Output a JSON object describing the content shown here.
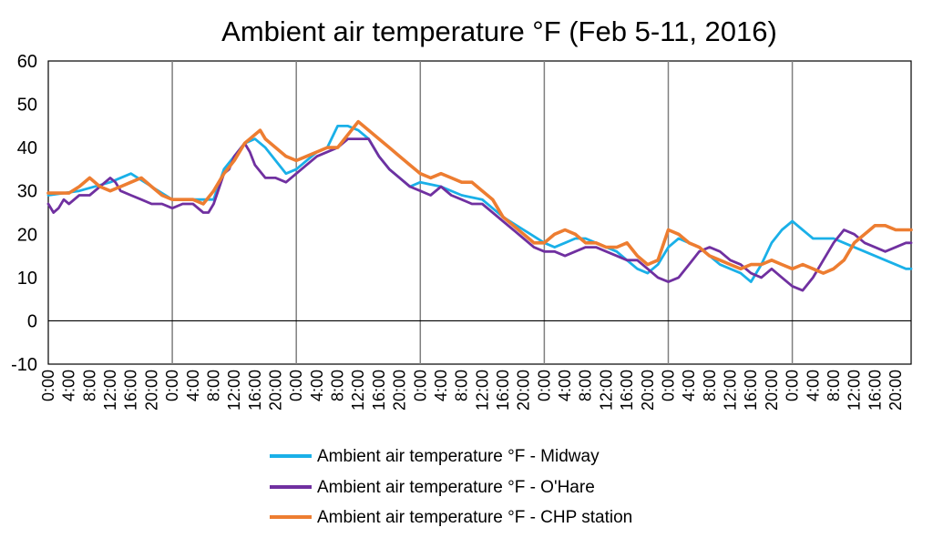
{
  "chart_data": {
    "type": "line",
    "title": "Ambient air temperature °F (Feb 5-11, 2016)",
    "xlabel": "",
    "ylabel": "",
    "ylim": [
      -10,
      60
    ],
    "yticks": [
      -10,
      0,
      10,
      20,
      30,
      40,
      50,
      60
    ],
    "x_tick_labels": [
      "0:00",
      "4:00",
      "8:00",
      "12:00",
      "16:00",
      "20:00",
      "0:00",
      "4:00",
      "8:00",
      "12:00",
      "16:00",
      "20:00",
      "0:00",
      "4:00",
      "8:00",
      "12:00",
      "16:00",
      "20:00",
      "0:00",
      "4:00",
      "8:00",
      "12:00",
      "16:00",
      "20:00",
      "0:00",
      "4:00",
      "8:00",
      "12:00",
      "16:00",
      "20:00",
      "0:00",
      "4:00",
      "8:00",
      "12:00",
      "16:00",
      "20:00",
      "0:00",
      "4:00",
      "8:00",
      "12:00",
      "16:00",
      "20:00"
    ],
    "x_hours": [
      0,
      4,
      8,
      12,
      16,
      20,
      24,
      28,
      32,
      36,
      40,
      44,
      48,
      52,
      56,
      60,
      64,
      68,
      72,
      76,
      80,
      84,
      88,
      92,
      96,
      100,
      104,
      108,
      112,
      116,
      120,
      124,
      128,
      132,
      136,
      140,
      144,
      148,
      152,
      156,
      160,
      164
    ],
    "x_max_hours": 167,
    "day_separators_hours": [
      24,
      48,
      72,
      96,
      120,
      144
    ],
    "grid": "vertical day separators",
    "legend_position": "bottom",
    "series": [
      {
        "name": "Ambient air temperature °F - Midway",
        "color": "#1ab0e8",
        "x": [
          0,
          6,
          12,
          16,
          20,
          24,
          28,
          32,
          34,
          36,
          38,
          40,
          42,
          44,
          46,
          48,
          50,
          52,
          54,
          56,
          58,
          60,
          62,
          64,
          66,
          68,
          70,
          72,
          76,
          80,
          84,
          88,
          92,
          96,
          98,
          100,
          102,
          104,
          106,
          108,
          110,
          112,
          114,
          116,
          118,
          120,
          122,
          124,
          126,
          128,
          130,
          132,
          134,
          136,
          138,
          140,
          142,
          144,
          146,
          148,
          150,
          152,
          154,
          156,
          158,
          160,
          162,
          164,
          166,
          167
        ],
        "values": [
          29,
          30,
          32,
          34,
          31,
          28,
          28,
          28,
          35,
          38,
          41,
          42,
          40,
          37,
          34,
          35,
          37,
          39,
          40,
          45,
          45,
          44,
          42,
          38,
          35,
          33,
          31,
          32,
          31,
          29,
          28,
          24,
          21,
          18,
          17,
          18,
          19,
          19,
          18,
          17,
          16,
          14,
          12,
          11,
          13,
          17,
          19,
          18,
          17,
          15,
          13,
          12,
          11,
          9,
          13,
          18,
          21,
          23,
          21,
          19,
          19,
          19,
          18,
          17,
          16,
          15,
          14,
          13,
          12,
          12
        ]
      },
      {
        "name": "Ambient air temperature °F - O'Hare",
        "color": "#7030a0",
        "x": [
          0,
          1,
          2,
          3,
          4,
          6,
          8,
          10,
          12,
          13,
          14,
          16,
          18,
          20,
          22,
          24,
          26,
          28,
          30,
          31,
          32,
          34,
          35,
          36,
          38,
          39,
          40,
          42,
          44,
          46,
          48,
          50,
          52,
          54,
          56,
          58,
          60,
          62,
          64,
          66,
          68,
          70,
          72,
          74,
          76,
          78,
          80,
          82,
          84,
          86,
          88,
          90,
          92,
          94,
          96,
          98,
          100,
          102,
          104,
          106,
          108,
          110,
          112,
          114,
          116,
          118,
          120,
          122,
          124,
          126,
          128,
          130,
          132,
          134,
          136,
          138,
          140,
          142,
          144,
          146,
          148,
          150,
          152,
          154,
          156,
          158,
          160,
          162,
          164,
          166,
          167
        ],
        "values": [
          27,
          25,
          26,
          28,
          27,
          29,
          29,
          31,
          33,
          32,
          30,
          29,
          28,
          27,
          27,
          26,
          27,
          27,
          25,
          25,
          27,
          34,
          35,
          38,
          41,
          39,
          36,
          33,
          33,
          32,
          34,
          36,
          38,
          39,
          40,
          42,
          42,
          42,
          38,
          35,
          33,
          31,
          30,
          29,
          31,
          29,
          28,
          27,
          27,
          25,
          23,
          21,
          19,
          17,
          16,
          16,
          15,
          16,
          17,
          17,
          16,
          15,
          14,
          14,
          12,
          10,
          9,
          10,
          13,
          16,
          17,
          16,
          14,
          13,
          11,
          10,
          12,
          10,
          8,
          7,
          10,
          14,
          18,
          21,
          20,
          18,
          17,
          16,
          17,
          18,
          18
        ]
      },
      {
        "name": "Ambient air temperature °F - CHP station",
        "color": "#ed7d31",
        "x": [
          0,
          4,
          6,
          8,
          10,
          12,
          14,
          16,
          18,
          20,
          22,
          24,
          26,
          28,
          30,
          32,
          34,
          36,
          38,
          39,
          40,
          41,
          42,
          44,
          46,
          48,
          50,
          52,
          54,
          56,
          58,
          60,
          61,
          62,
          64,
          66,
          68,
          70,
          72,
          74,
          76,
          78,
          80,
          82,
          84,
          86,
          88,
          90,
          92,
          94,
          96,
          98,
          100,
          102,
          104,
          106,
          108,
          110,
          112,
          114,
          116,
          118,
          120,
          122,
          124,
          126,
          128,
          130,
          132,
          134,
          136,
          138,
          140,
          142,
          144,
          146,
          148,
          150,
          152,
          154,
          156,
          158,
          160,
          162,
          164,
          166,
          167
        ],
        "values": [
          29.5,
          29.5,
          31,
          33,
          31,
          30,
          31,
          32,
          33,
          31,
          29,
          28,
          28,
          28,
          27,
          30,
          34,
          37,
          41,
          42,
          43,
          44,
          42,
          40,
          38,
          37,
          38,
          39,
          40,
          40,
          43,
          46,
          45,
          44,
          42,
          40,
          38,
          36,
          34,
          33,
          34,
          33,
          32,
          32,
          30,
          28,
          24,
          22,
          20,
          18,
          18,
          20,
          21,
          20,
          18,
          18,
          17,
          17,
          18,
          15,
          13,
          14,
          21,
          20,
          18,
          17,
          15,
          14,
          13,
          12,
          13,
          13,
          14,
          13,
          12,
          13,
          12,
          11,
          12,
          14,
          18,
          20,
          22,
          22,
          21,
          21,
          21
        ]
      }
    ]
  }
}
